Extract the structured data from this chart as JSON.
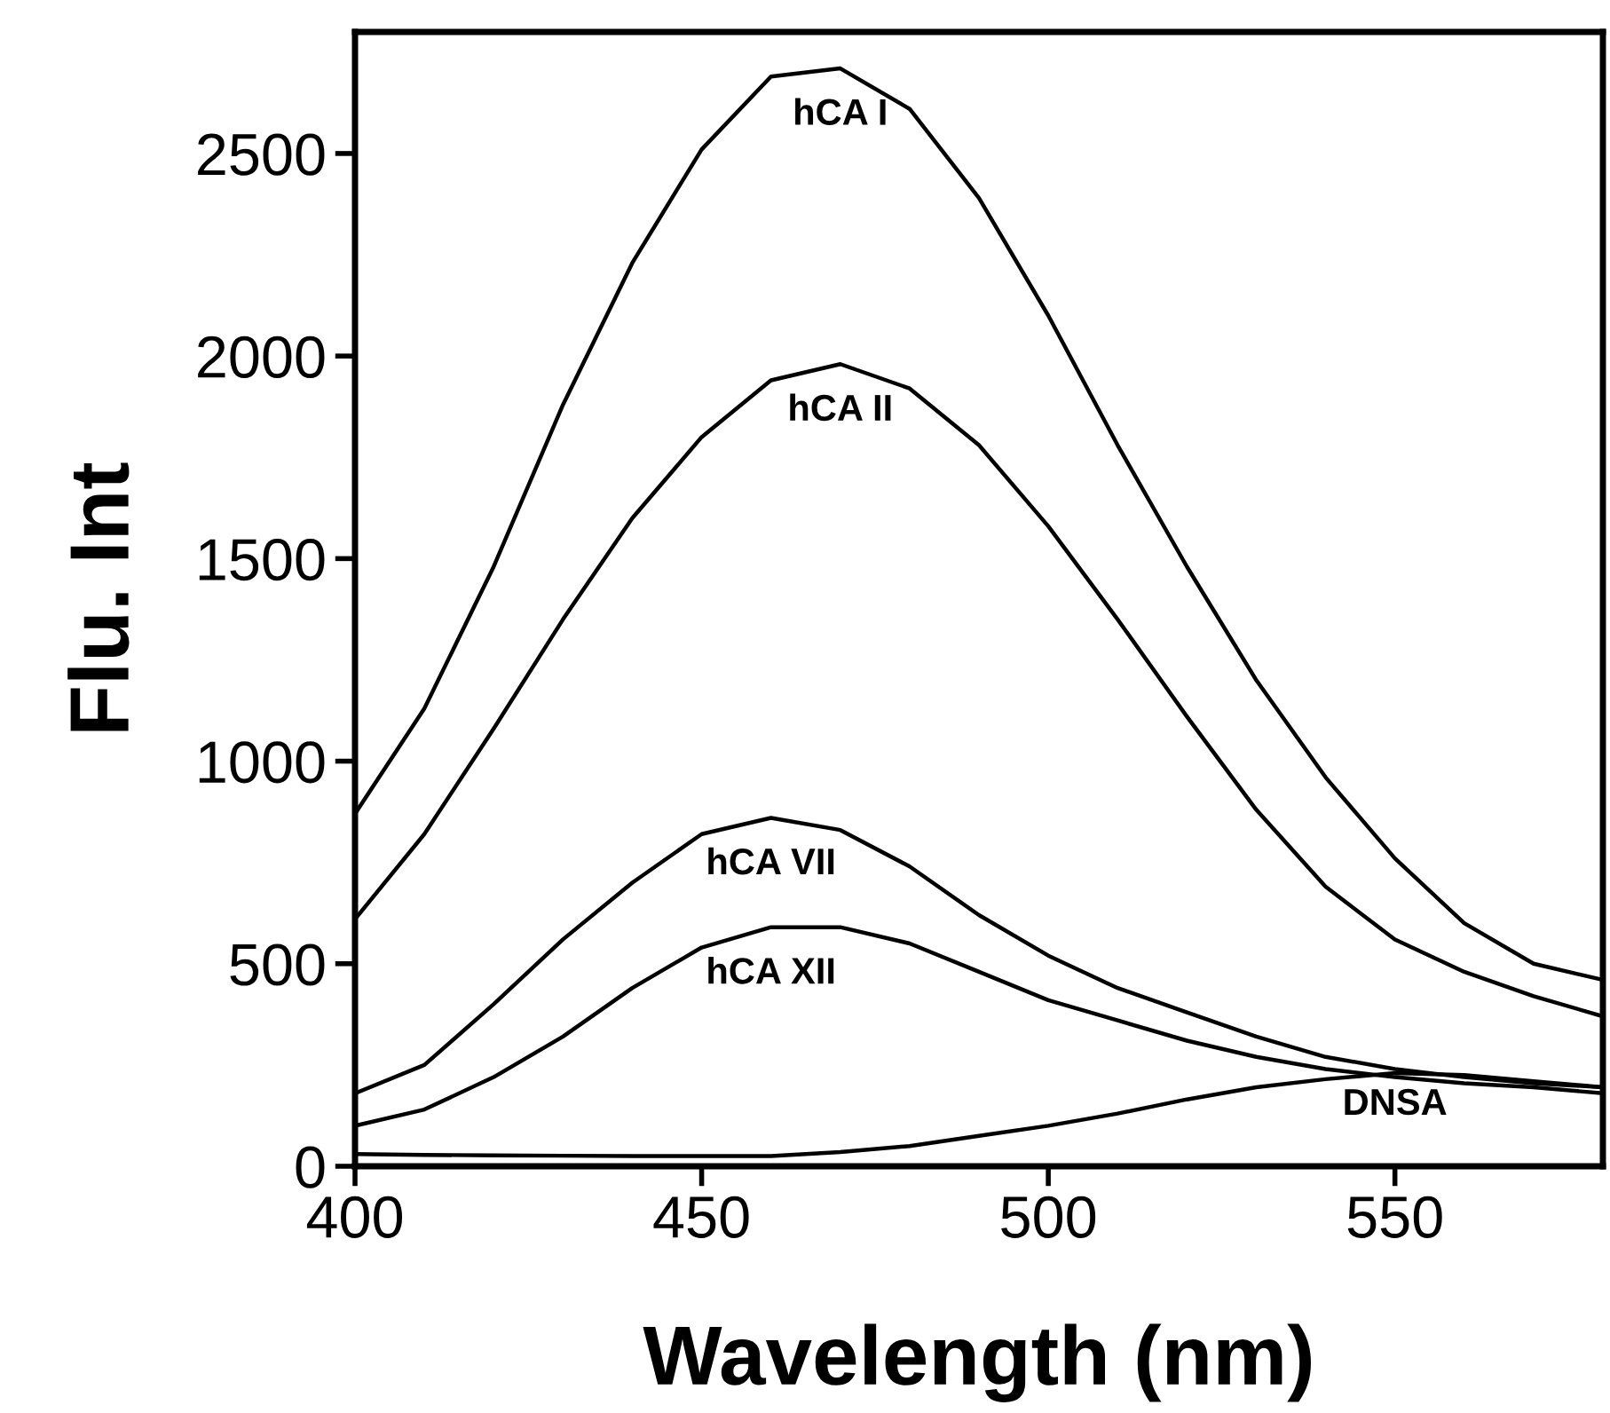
{
  "chart_data": {
    "type": "line",
    "xlabel": "Wavelength (nm)",
    "ylabel": "Flu. Int",
    "x": [
      400,
      410,
      420,
      430,
      440,
      450,
      460,
      470,
      480,
      490,
      500,
      510,
      520,
      530,
      540,
      550,
      560,
      570,
      580
    ],
    "series": [
      {
        "name": "hCA I",
        "color": "#000000",
        "values": [
          870,
          1130,
          1480,
          1880,
          2230,
          2510,
          2690,
          2710,
          2610,
          2390,
          2100,
          1780,
          1480,
          1200,
          960,
          760,
          600,
          500,
          460
        ]
      },
      {
        "name": "hCA II",
        "color": "#000000",
        "values": [
          610,
          820,
          1080,
          1350,
          1600,
          1800,
          1940,
          1980,
          1920,
          1780,
          1580,
          1350,
          1110,
          880,
          690,
          560,
          480,
          420,
          370
        ]
      },
      {
        "name": "hCA VII",
        "color": "#000000",
        "values": [
          180,
          250,
          400,
          560,
          700,
          820,
          860,
          830,
          740,
          620,
          520,
          440,
          380,
          320,
          270,
          240,
          220,
          205,
          195
        ]
      },
      {
        "name": "hCA XII",
        "color": "#000000",
        "values": [
          100,
          140,
          220,
          320,
          440,
          540,
          590,
          590,
          550,
          480,
          410,
          360,
          310,
          270,
          240,
          220,
          205,
          195,
          180
        ]
      },
      {
        "name": "DNSA",
        "color": "#000000",
        "values": [
          30,
          28,
          27,
          26,
          25,
          25,
          25,
          35,
          50,
          75,
          100,
          130,
          165,
          195,
          215,
          230,
          225,
          210,
          195
        ]
      }
    ],
    "xlim": [
      400,
      580
    ],
    "xticks": [
      400,
      450,
      500,
      550
    ],
    "ylim": [
      0,
      2800
    ],
    "yticks": [
      0,
      500,
      1000,
      1500,
      2000,
      2500
    ],
    "grid": false,
    "legend": false,
    "marker": "none",
    "line_style": "solid"
  }
}
